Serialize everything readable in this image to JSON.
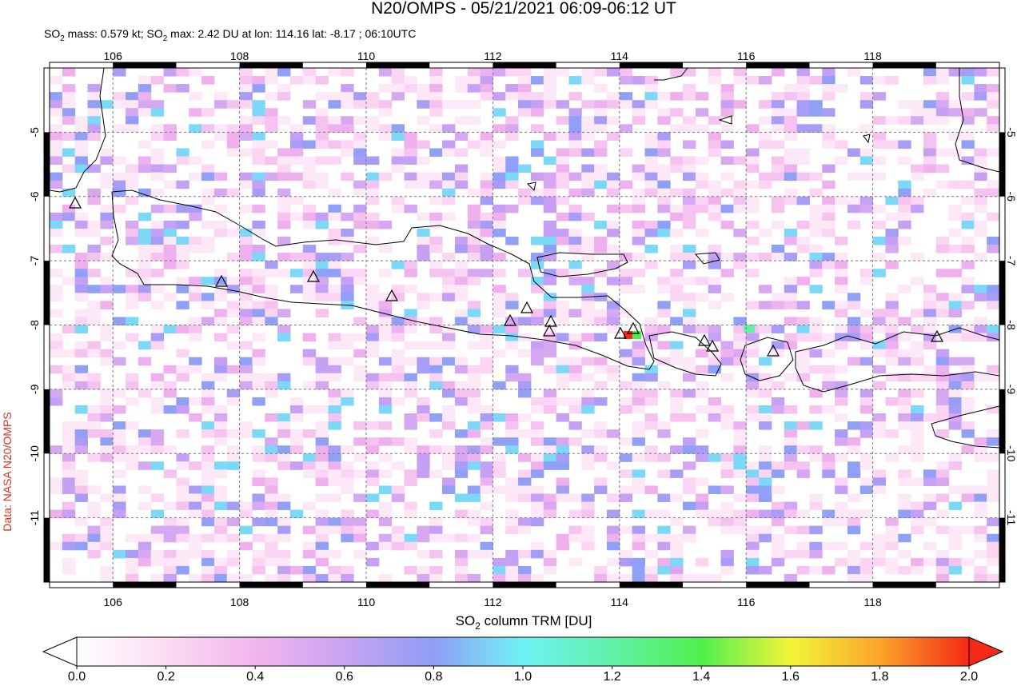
{
  "map": {
    "title": "N20/OMPS - 05/21/2021 06:09-06:12 UT",
    "subtitle": [
      "SO",
      "2",
      " mass: 0.579 kt; SO",
      "2",
      " max: 2.42 DU at lon: 114.16 lat: -8.17 ; 06:10UTC"
    ],
    "credit": "Data: NASA N20/OMPS",
    "xlim": [
      105,
      120
    ],
    "ylim": [
      -12,
      -4
    ],
    "xticks": [
      106,
      108,
      110,
      112,
      114,
      116,
      118
    ],
    "yticks": [
      -5,
      -6,
      -7,
      -8,
      -9,
      -10,
      -11
    ],
    "colorbar": {
      "label": [
        "SO",
        "2",
        " column TRM [DU]"
      ],
      "lim": [
        0,
        2
      ],
      "ticks": [
        {
          "value": 0,
          "label": "0.0"
        },
        {
          "value": 0.2,
          "label": "0.2"
        },
        {
          "value": 0.4,
          "label": "0.4"
        },
        {
          "value": 0.6,
          "label": "0.6"
        },
        {
          "value": 0.8,
          "label": "0.8"
        },
        {
          "value": 1,
          "label": "1.0"
        },
        {
          "value": 1.2,
          "label": "1.2"
        },
        {
          "value": 1.4,
          "label": "1.4"
        },
        {
          "value": 1.6,
          "label": "1.6"
        },
        {
          "value": 1.8,
          "label": "1.8"
        },
        {
          "value": 2,
          "label": "2.0"
        }
      ]
    }
  }
}
